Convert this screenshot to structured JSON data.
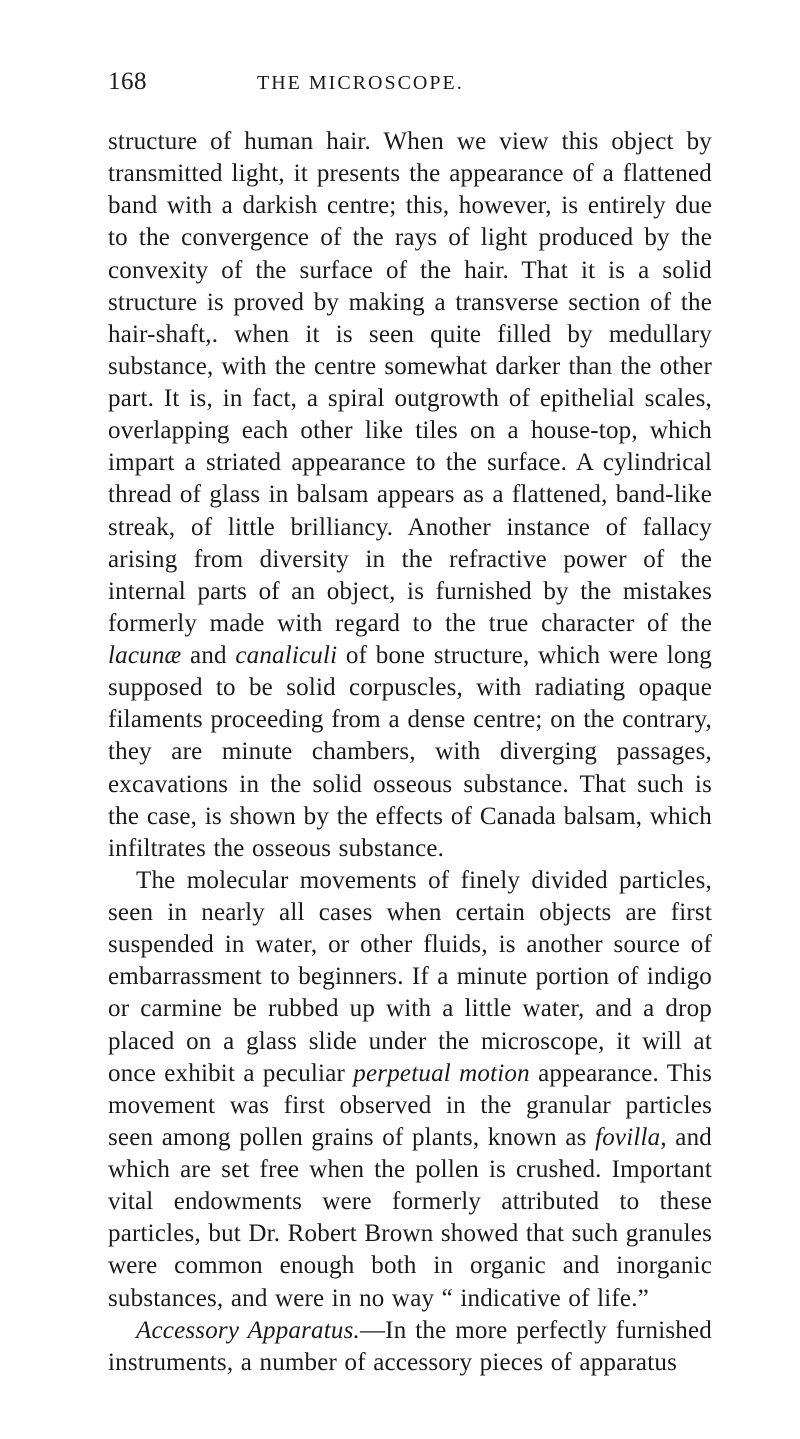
{
  "page_number": "168",
  "running_title": "THE MICROSCOPE.",
  "paragraphs": [
    "structure of human hair. When we view this object by transmitted light, it presents the appearance of a flattened band with a darkish centre; this, however, is entirely due to the convergence of the rays of light produced by the convexity of the surface of the hair. That it is a solid structure is proved by making a transverse section of the hair-shaft,. when it is seen quite filled by medullary substance, with the centre somewhat darker than the other part. It is, in fact, a spiral outgrowth of epithelial scales, overlapping each other like tiles on a house-top, which impart a striated appearance to the surface. A cylindrical thread of glass in balsam appears as a flattened, band-like streak, of little brilliancy. Another instance of fallacy arising from diversity in the refractive power of the internal parts of an object, is furnished by the mistakes for­merly made with regard to the true character of the <i>lacunæ</i> and <i>canaliculi</i> of bone structure, which were long supposed to be solid corpuscles, with radiating opaque filaments proceeding from a dense centre; on the contrary, they are minute chambers, with diverging passages, excavations in the solid osseous substance. That such is the case, is shown by the effects of Canada balsam, which infiltrates the osseous substance.",
    "The molecular movements of finely divided particles, seen in nearly all cases when certain objects are first suspended in water, or other fluids, is another source of embarrassment to beginners. If a minute portion of indigo or carmine be rubbed up with a little water, and a drop placed on a glass slide under the micro­scope, it will at once exhibit a peculiar <i>perpetual motion</i> appearance. This movement was first observed in the granular particles seen among pollen grains of plants, known as <i>fovilla</i>, and which are set free when the pollen is crushed. Important vital endowments were formerly attributed to these particles, but Dr. Robert Brown showed that such granules were com­mon enough both in organic and inorganic substances, and were in no way “ indicative of life.”",
    "<i>Accessory Apparatus.</i>—In the more perfectly furnished instruments, a number of accessory pieces of apparatus"
  ],
  "colors": {
    "background": "#ffffff",
    "text": "#1a1a1a"
  },
  "typography": {
    "body_fontsize": 25,
    "header_fontsize_page": 25,
    "header_fontsize_title": 20,
    "line_height": 1.285,
    "font_family": "Georgia serif"
  }
}
